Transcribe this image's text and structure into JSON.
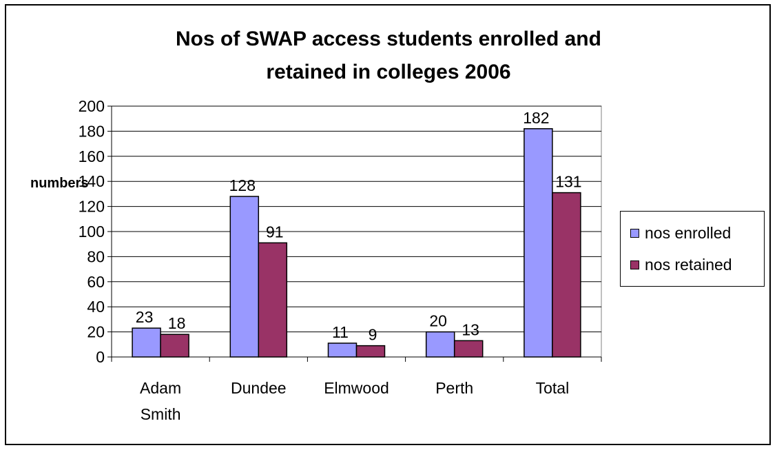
{
  "chart_data": {
    "type": "bar",
    "title_lines": [
      "Nos of SWAP access students enrolled and",
      "retained in colleges 2006"
    ],
    "ylabel": "numbers",
    "xlabel": "",
    "categories": [
      [
        "Adam",
        "Smith"
      ],
      [
        "Dundee"
      ],
      [
        "Elmwood"
      ],
      [
        "Perth"
      ],
      [
        "Total"
      ]
    ],
    "series": [
      {
        "name": "nos enrolled",
        "color": "#9999ff",
        "values": [
          23,
          128,
          11,
          20,
          182
        ]
      },
      {
        "name": "nos retained",
        "color": "#993366",
        "values": [
          18,
          91,
          9,
          13,
          131
        ]
      }
    ],
    "ylim": [
      0,
      200
    ],
    "yticks": [
      0,
      20,
      40,
      60,
      80,
      100,
      120,
      140,
      160,
      180,
      200
    ],
    "grid": true,
    "legend_position": "right"
  }
}
